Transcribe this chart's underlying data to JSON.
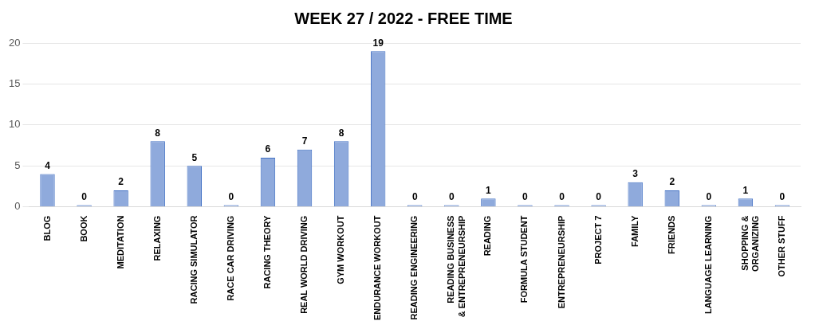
{
  "chart_data": {
    "type": "bar",
    "title": "WEEK 27 / 2022 - FREE TIME",
    "categories": [
      "BLOG",
      "BOOK",
      "MEDITATION",
      "RELAXING",
      "RACING SIMULATOR",
      "RACE CAR DRIVING",
      "RACING THEORY",
      "REAL WORLD DRIVING",
      "GYM WORKOUT",
      "ENDURANCE WORKOUT",
      "READING ENGINEERING",
      "READING BUSINESS & ENTREPRENEURSHIP",
      "READING",
      "FORMULA STUDENT",
      "ENTREPRENEURSHIP",
      "PROJECT 7",
      "FAMILY",
      "FRIENDS",
      "LANGUAGE LEARNING",
      "SHOPPING & ORGANIZING",
      "OTHER STUFF"
    ],
    "values": [
      4,
      0,
      2,
      8,
      5,
      0,
      6,
      7,
      8,
      19,
      0,
      0,
      1,
      0,
      0,
      0,
      3,
      2,
      0,
      1,
      0
    ],
    "color": "#8faadc",
    "ylim": [
      0,
      20
    ],
    "yticks": [
      0,
      5,
      10,
      15,
      20
    ],
    "grid": "y",
    "data_labels": true
  }
}
